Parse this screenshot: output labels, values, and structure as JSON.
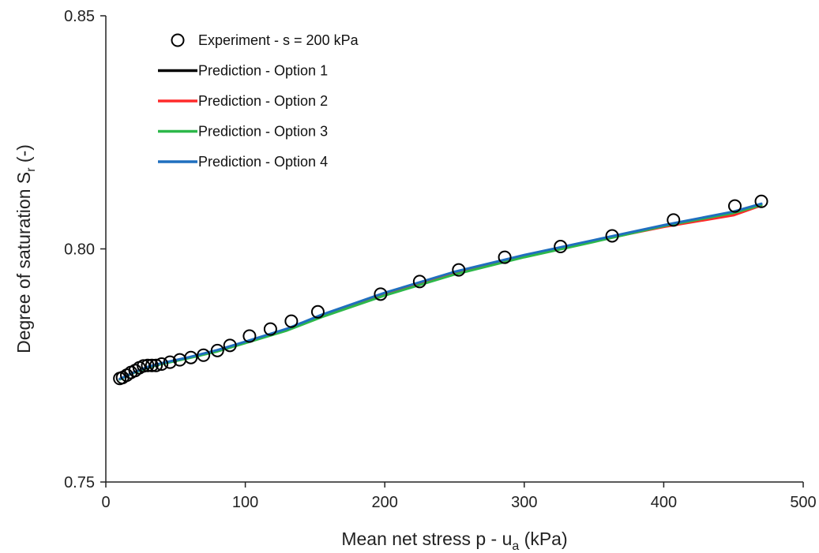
{
  "chart_data": {
    "type": "line",
    "title": "",
    "xlabel": {
      "text": "Mean net stress p - u",
      "sub": "a",
      "tail": " (kPa)"
    },
    "ylabel": {
      "text": "Degree of saturation S",
      "sub": "r",
      "tail": " (-)"
    },
    "xlim": [
      0,
      500
    ],
    "ylim": [
      0.75,
      0.85
    ],
    "xticks": [
      "0",
      "100",
      "200",
      "300",
      "400",
      "500"
    ],
    "yticks": [
      "0.75",
      "0.80",
      "0.85"
    ],
    "grid": false,
    "legend_position": "top-left",
    "experiment": {
      "name": "Experiment - s = 200 kPa",
      "x": [
        10,
        12,
        15,
        18,
        21,
        24,
        27,
        30,
        33,
        36,
        40,
        46,
        53,
        61,
        70,
        80,
        89,
        103,
        118,
        133,
        152,
        197,
        225,
        253,
        286,
        326,
        363,
        407,
        451,
        470
      ],
      "y": [
        0.7722,
        0.7724,
        0.7729,
        0.7735,
        0.7739,
        0.7745,
        0.7749,
        0.775,
        0.775,
        0.775,
        0.7753,
        0.7757,
        0.7762,
        0.7767,
        0.7772,
        0.7782,
        0.7793,
        0.7813,
        0.7828,
        0.7845,
        0.7865,
        0.7903,
        0.793,
        0.7955,
        0.7982,
        0.8005,
        0.8028,
        0.8062,
        0.8092,
        0.8102
      ]
    },
    "series": [
      {
        "name": "Prediction - Option 1",
        "color": "#000000",
        "x": [
          10,
          20,
          30,
          40,
          60,
          80,
          100,
          130,
          155,
          200,
          250,
          300,
          350,
          400,
          450,
          470
        ],
        "y": [
          0.7721,
          0.7735,
          0.7746,
          0.7754,
          0.7767,
          0.7782,
          0.78,
          0.7828,
          0.7858,
          0.7905,
          0.795,
          0.7985,
          0.8017,
          0.805,
          0.8078,
          0.8095
        ]
      },
      {
        "name": "Prediction - Option 2",
        "color": "#ff2a2a",
        "x": [
          10,
          20,
          30,
          40,
          60,
          80,
          100,
          130,
          155,
          200,
          250,
          300,
          350,
          400,
          450,
          470
        ],
        "y": [
          0.7721,
          0.7735,
          0.7746,
          0.7754,
          0.7767,
          0.7782,
          0.78,
          0.7828,
          0.7858,
          0.7905,
          0.795,
          0.7985,
          0.8017,
          0.8047,
          0.8072,
          0.8093
        ]
      },
      {
        "name": "Prediction - Option 3",
        "color": "#2db84a",
        "x": [
          10,
          20,
          30,
          40,
          60,
          80,
          100,
          130,
          155,
          200,
          250,
          300,
          350,
          400,
          450,
          470
        ],
        "y": [
          0.772,
          0.7734,
          0.7745,
          0.7753,
          0.7766,
          0.778,
          0.7798,
          0.7825,
          0.7854,
          0.79,
          0.7945,
          0.7982,
          0.8015,
          0.8049,
          0.8077,
          0.8094
        ]
      },
      {
        "name": "Prediction - Option 4",
        "color": "#1f6fbf",
        "x": [
          10,
          20,
          30,
          40,
          60,
          80,
          100,
          130,
          155,
          200,
          250,
          300,
          350,
          400,
          450,
          470
        ],
        "y": [
          0.7721,
          0.7735,
          0.7747,
          0.7755,
          0.7768,
          0.7783,
          0.7801,
          0.7829,
          0.7859,
          0.7906,
          0.7951,
          0.7987,
          0.8019,
          0.8051,
          0.808,
          0.8097
        ]
      }
    ]
  }
}
